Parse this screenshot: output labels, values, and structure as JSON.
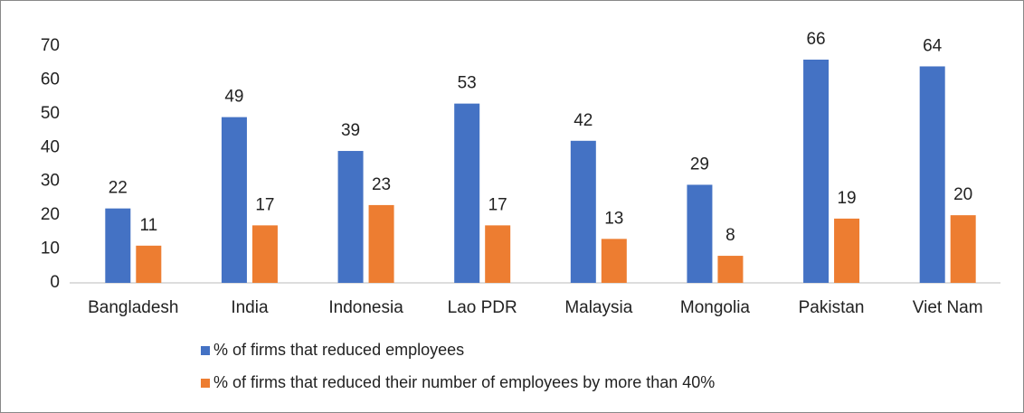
{
  "chart_data": {
    "type": "bar",
    "categories": [
      "Bangladesh",
      "India",
      "Indonesia",
      "Lao PDR",
      "Malaysia",
      "Mongolia",
      "Pakistan",
      "Viet Nam"
    ],
    "series": [
      {
        "name": "% of firms that reduced employees",
        "color": "#4472c4",
        "values": [
          22,
          49,
          39,
          53,
          42,
          29,
          66,
          64
        ]
      },
      {
        "name": "% of firms that reduced their number of employees by more than 40%",
        "color": "#ed7d31",
        "values": [
          11,
          17,
          23,
          17,
          13,
          8,
          19,
          20
        ]
      }
    ],
    "ylim": [
      0,
      70
    ],
    "yticks": [
      0,
      10,
      20,
      30,
      40,
      50,
      60,
      70
    ],
    "grid": false,
    "legend": "bottom"
  }
}
